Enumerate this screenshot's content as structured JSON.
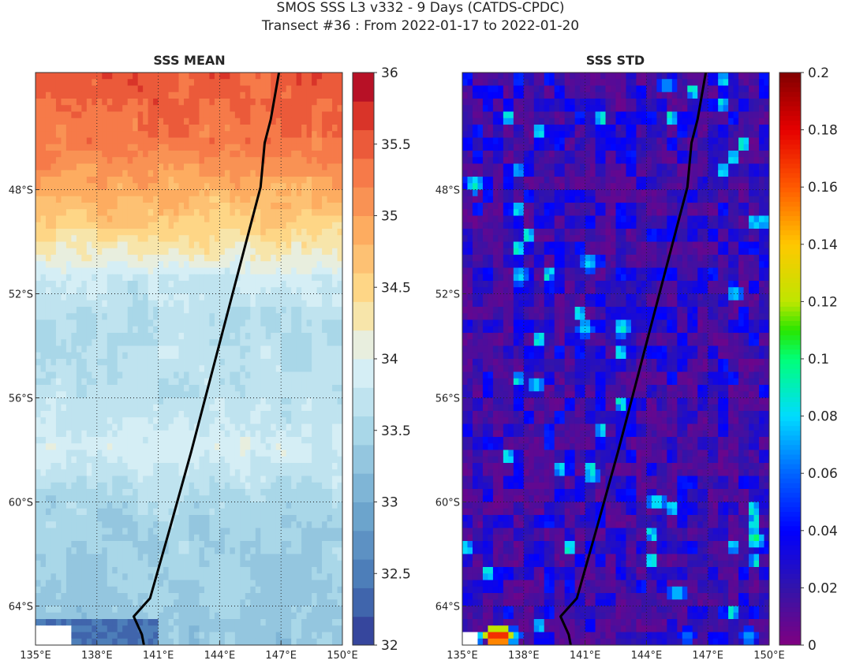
{
  "header": {
    "line1": "SMOS SSS L3 v332 - 9 Days (CATDS-CPDC)",
    "line2": "Transect #36 : From 2022-01-17 to 2022-01-20"
  },
  "chart_data": [
    {
      "type": "heatmap",
      "title": "SSS MEAN",
      "xlim": [
        135,
        150
      ],
      "ylim": [
        -65.5,
        -43.5
      ],
      "x_ticks": [
        135,
        138,
        141,
        144,
        147,
        150
      ],
      "x_tick_labels": [
        "135°E",
        "138°E",
        "141°E",
        "144°E",
        "147°E",
        "150°E"
      ],
      "y_ticks": [
        -48,
        -52,
        -56,
        -60,
        -64
      ],
      "y_tick_labels": [
        "48°S",
        "52°S",
        "56°S",
        "60°S",
        "64°S"
      ],
      "grid": true,
      "colorbar": {
        "colormap": "RdYlBu_r",
        "range": [
          32,
          36
        ],
        "levels": 20,
        "ticks": [
          32,
          32.5,
          33,
          33.5,
          34,
          34.5,
          35,
          35.5,
          36
        ],
        "tick_labels": [
          "32",
          "32.5",
          "33",
          "33.5",
          "34",
          "34.5",
          "35",
          "35.5",
          "36"
        ]
      },
      "field_profile": {
        "lat": [
          -43.5,
          -46,
          -48,
          -49.5,
          -50.5,
          -51.5,
          -53,
          -56,
          -58,
          -60,
          -63,
          -65.5
        ],
        "mean": [
          35.5,
          35.3,
          34.9,
          34.5,
          34.2,
          33.8,
          33.6,
          33.7,
          33.9,
          33.5,
          33.4,
          33.3
        ],
        "noise": 0.28,
        "lower_left_patch": {
          "lon_max": 141,
          "lat_max": -64.4,
          "value": 32.4
        }
      },
      "transect": {
        "lon": [
          146.9,
          146.5,
          146.2,
          146.0,
          145.2,
          143.7,
          142.6,
          141.5,
          140.6,
          139.8,
          140.2,
          140.3
        ],
        "lat": [
          -43.5,
          -45.3,
          -46.2,
          -47.9,
          -50.3,
          -54.8,
          -58.1,
          -61.2,
          -63.7,
          -64.4,
          -65.1,
          -65.5
        ]
      }
    },
    {
      "type": "heatmap",
      "title": "SSS STD",
      "xlim": [
        135,
        150
      ],
      "ylim": [
        -65.5,
        -43.5
      ],
      "x_ticks": [
        135,
        138,
        141,
        144,
        147,
        150
      ],
      "x_tick_labels": [
        "135°E",
        "138°E",
        "141°E",
        "144°E",
        "147°E",
        "150°E"
      ],
      "y_ticks": [
        -48,
        -52,
        -56,
        -60,
        -64
      ],
      "y_tick_labels": [
        "48°S",
        "52°S",
        "56°S",
        "60°S",
        "64°S"
      ],
      "grid": true,
      "colorbar": {
        "colormap": "jet-purple",
        "range": [
          0,
          0.2
        ],
        "ticks": [
          0,
          0.02,
          0.04,
          0.06,
          0.08,
          0.1,
          0.12,
          0.14,
          0.16,
          0.18,
          0.2
        ],
        "tick_labels": [
          "0",
          "0.02",
          "0.04",
          "0.06",
          "0.08",
          "0.1",
          "0.12",
          "0.14",
          "0.16",
          "0.18",
          "0.2"
        ]
      },
      "field_profile": {
        "background": [
          0.005,
          0.04
        ],
        "hotspots": [
          {
            "lon": 145.0,
            "lat": -44.0,
            "value": 0.08
          },
          {
            "lon": 135.6,
            "lat": -47.8,
            "value": 0.1
          },
          {
            "lon": 141.2,
            "lat": -50.8,
            "value": 0.09
          },
          {
            "lon": 137.8,
            "lat": -51.3,
            "value": 0.09
          },
          {
            "lon": 148.3,
            "lat": -52.0,
            "value": 0.09
          },
          {
            "lon": 141.0,
            "lat": -53.3,
            "value": 0.09
          },
          {
            "lon": 142.8,
            "lat": -53.3,
            "value": 0.1
          },
          {
            "lon": 138.6,
            "lat": -55.5,
            "value": 0.09
          },
          {
            "lon": 141.3,
            "lat": -59.0,
            "value": 0.09
          },
          {
            "lon": 144.5,
            "lat": -60.0,
            "value": 0.1
          },
          {
            "lon": 149.3,
            "lat": -61.4,
            "value": 0.11
          },
          {
            "lon": 145.5,
            "lat": -63.5,
            "value": 0.09
          },
          {
            "lon": 136.5,
            "lat": -65.2,
            "value": 0.2
          },
          {
            "lon": 137.0,
            "lat": -65.2,
            "value": 0.2
          },
          {
            "lon": 137.5,
            "lat": -65.2,
            "value": 0.09
          },
          {
            "lon": 146.0,
            "lat": -65.2,
            "value": 0.07
          },
          {
            "lon": 149.0,
            "lat": -65.2,
            "value": 0.08
          }
        ]
      },
      "transect": {
        "lon": [
          146.9,
          146.5,
          146.2,
          146.0,
          145.2,
          143.7,
          142.6,
          141.5,
          140.6,
          139.8,
          140.2,
          140.3
        ],
        "lat": [
          -43.5,
          -45.3,
          -46.2,
          -47.9,
          -50.3,
          -54.8,
          -58.1,
          -61.2,
          -63.7,
          -64.4,
          -65.1,
          -65.5
        ]
      }
    }
  ]
}
